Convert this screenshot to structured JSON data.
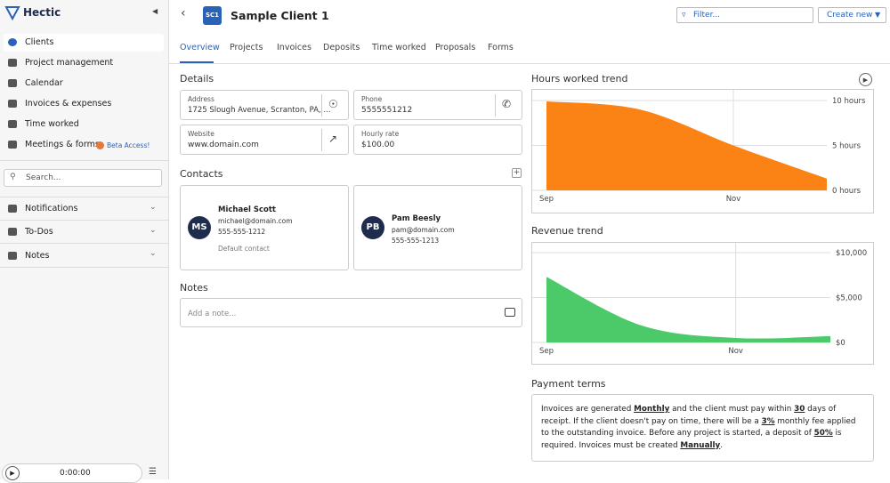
{
  "sidebar": {
    "brand": "Hectic",
    "nav": [
      "Clients",
      "Project management",
      "Calendar",
      "Invoices & expenses",
      "Time worked",
      "Meetings & forms"
    ],
    "beta": "Beta Access!",
    "search": "Search...",
    "sections": [
      "Notifications",
      "To-Dos",
      "Notes"
    ],
    "timer": "0:00:00"
  },
  "header": {
    "badge": "SC1",
    "title": "Sample Client 1",
    "filter": "Filter...",
    "create": "Create new"
  },
  "tabs": [
    "Overview",
    "Projects",
    "Invoices",
    "Deposits",
    "Time worked",
    "Proposals",
    "Forms"
  ],
  "details": {
    "heading": "Details",
    "fields": [
      {
        "label": "Address",
        "value": "1725 Slough Avenue, Scranton, PA, ..."
      },
      {
        "label": "Phone",
        "value": "5555551212"
      },
      {
        "label": "Website",
        "value": "www.domain.com"
      },
      {
        "label": "Hourly rate",
        "value": "$100.00"
      }
    ]
  },
  "contacts": {
    "heading": "Contacts",
    "items": [
      {
        "initials": "MS",
        "name": "Michael Scott",
        "email": "michael@domain.com",
        "phone": "555-555-1212",
        "note": "Default contact"
      },
      {
        "initials": "PB",
        "name": "Pam Beesly",
        "email": "pam@domain.com",
        "phone": "555-555-1213"
      }
    ]
  },
  "notes": {
    "heading": "Notes",
    "placeholder": "Add a note..."
  },
  "payment": {
    "heading": "Payment terms",
    "parts": [
      "Invoices are generated ",
      "Monthly",
      " and the client must pay within ",
      "30",
      " days of receipt. If the client doesn't pay on time, there will be a ",
      "3%",
      " monthly fee applied to the outstanding invoice. Before any project is started, a deposit of ",
      "50%",
      " is required. Invoices must be created ",
      "Manually",
      "."
    ]
  },
  "chart_data": [
    {
      "type": "area",
      "title": "Hours worked trend",
      "categories": [
        "Sep",
        null,
        "Nov",
        null
      ],
      "values": [
        9.9,
        9.0,
        5.0,
        1.3
      ],
      "color": "#fb8214",
      "ylim": [
        0,
        10
      ],
      "yticks": [
        {
          "value": 0,
          "label": "0 hours"
        },
        {
          "value": 5,
          "label": "5 hours"
        },
        {
          "value": 10,
          "label": "10 hours"
        }
      ],
      "grid": true
    },
    {
      "type": "area",
      "title": "Revenue trend",
      "categories": [
        "Sep",
        null,
        "Nov",
        null
      ],
      "values": [
        7300,
        1900,
        500,
        700
      ],
      "color": "#4cca6a",
      "ylim": [
        0,
        10000
      ],
      "yticks": [
        {
          "value": 0,
          "label": "$0"
        },
        {
          "value": 5000,
          "label": "$5,000"
        },
        {
          "value": 10000,
          "label": "$10,000"
        }
      ],
      "grid": true
    }
  ]
}
